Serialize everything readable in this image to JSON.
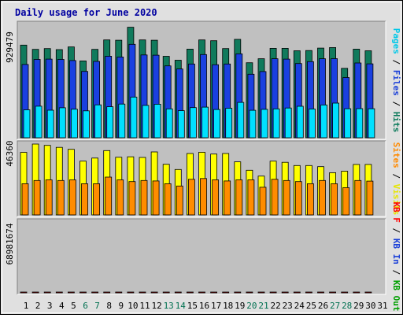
{
  "chart_data": {
    "title": "Daily usage for June 2020",
    "type": "bar",
    "categories": [
      "1",
      "2",
      "3",
      "4",
      "5",
      "6",
      "7",
      "8",
      "9",
      "10",
      "11",
      "12",
      "13",
      "14",
      "15",
      "16",
      "17",
      "18",
      "19",
      "20",
      "21",
      "22",
      "23",
      "24",
      "25",
      "26",
      "27",
      "28",
      "29",
      "30",
      "31"
    ],
    "weekend_days": [
      6,
      7,
      13,
      14,
      20,
      21,
      27,
      28
    ],
    "panels": [
      {
        "id": "top",
        "ylabel": "929479",
        "ymax": 929479,
        "side_labels": [
          {
            "text": "Pages",
            "color": "#00c8e8"
          },
          {
            "text": " / ",
            "color": "#000000"
          },
          {
            "text": "Files",
            "color": "#1a3fd8"
          },
          {
            "text": " / ",
            "color": "#000000"
          },
          {
            "text": "Hits",
            "color": "#0b7a5a"
          }
        ],
        "series": [
          {
            "name": "Hits",
            "color": "#107a5c",
            "values": [
              760000,
              725000,
              731000,
              723000,
              745000,
              630000,
              725000,
              802000,
              800000,
              906000,
              802000,
              800000,
              668000,
              636000,
              727000,
              802000,
              796000,
              731000,
              807000,
              615000,
              648000,
              733000,
              733000,
              713000,
              715000,
              735000,
              740000,
              569000,
              727000,
              713000,
              0
            ]
          },
          {
            "name": "Files",
            "color": "#1a40e0",
            "values": [
              601000,
              642000,
              645000,
              642000,
              633000,
              544000,
              626000,
              669000,
              662000,
              766000,
              679000,
              677000,
              589000,
              564000,
              605000,
              682000,
              599000,
              605000,
              688000,
              521000,
              543000,
              648000,
              645000,
              609000,
              624000,
              648000,
              649000,
              494000,
              613000,
              606000,
              0
            ]
          },
          {
            "name": "Pages",
            "color": "#00e0ff",
            "values": [
              229000,
              259000,
              226000,
              246000,
              234000,
              221000,
              270000,
              254000,
              276000,
              334000,
              265000,
              275000,
              237000,
              222000,
              247000,
              251000,
              232000,
              242000,
              290000,
              225000,
              233000,
              237000,
              244000,
              258000,
              236000,
              269000,
              284000,
              238000,
              239000,
              238000,
              0
            ]
          }
        ]
      },
      {
        "id": "middle",
        "ylabel": "46360",
        "ymax": 46360,
        "side_labels": [
          {
            "text": "Sites",
            "color": "#ff8a00"
          },
          {
            "text": " / ",
            "color": "#000000"
          },
          {
            "text": "Visits",
            "color": "#e6e600"
          }
        ],
        "series": [
          {
            "name": "Visits",
            "color": "#ffff00",
            "values": [
              40900,
              46360,
              45500,
              44200,
              42900,
              35200,
              37200,
              42100,
              37700,
              38000,
              37600,
              41200,
              33100,
              29700,
              40200,
              41000,
              39800,
              40200,
              34700,
              29200,
              25400,
              35200,
              34400,
              32300,
              32300,
              31600,
              27600,
              28600,
              33000,
              33000,
              0
            ]
          },
          {
            "name": "Sites",
            "color": "#ff8c00",
            "values": [
              20400,
              22500,
              22900,
              22500,
              22900,
              20400,
              20400,
              24700,
              22900,
              21800,
              22500,
              22200,
              20400,
              18900,
              23300,
              23800,
              22900,
              22200,
              22900,
              22900,
              18100,
              23300,
              22500,
              21800,
              20400,
              22500,
              20400,
              17800,
              22500,
              22100,
              0
            ]
          }
        ]
      },
      {
        "id": "bottom",
        "ylabel": "68981674",
        "ymax": 68981674,
        "side_labels": [
          {
            "text": "KB F",
            "color": "#ff0000"
          },
          {
            "text": " / ",
            "color": "#000000"
          },
          {
            "text": "KB In",
            "color": "#1a3fd8"
          },
          {
            "text": " / ",
            "color": "#000000"
          },
          {
            "text": "KB Out",
            "color": "#00a000"
          }
        ],
        "series": [
          {
            "name": "KB F",
            "color": "#ff0000",
            "values": [
              64400,
              68120,
              68120,
              67490,
              68120,
              66230,
              67490,
              66850,
              60550,
              63700,
              57400,
              58000,
              55500,
              52350,
              54250,
              56150,
              53600,
              52350,
              46700,
              37800,
              41600,
              50460,
              50460,
              47300,
              47300,
              47300,
              45350,
              47300,
              52350,
              49800,
              0
            ]
          }
        ]
      }
    ],
    "x_tick_colors": {
      "weekday": "#000000",
      "weekend": "#007050"
    }
  }
}
